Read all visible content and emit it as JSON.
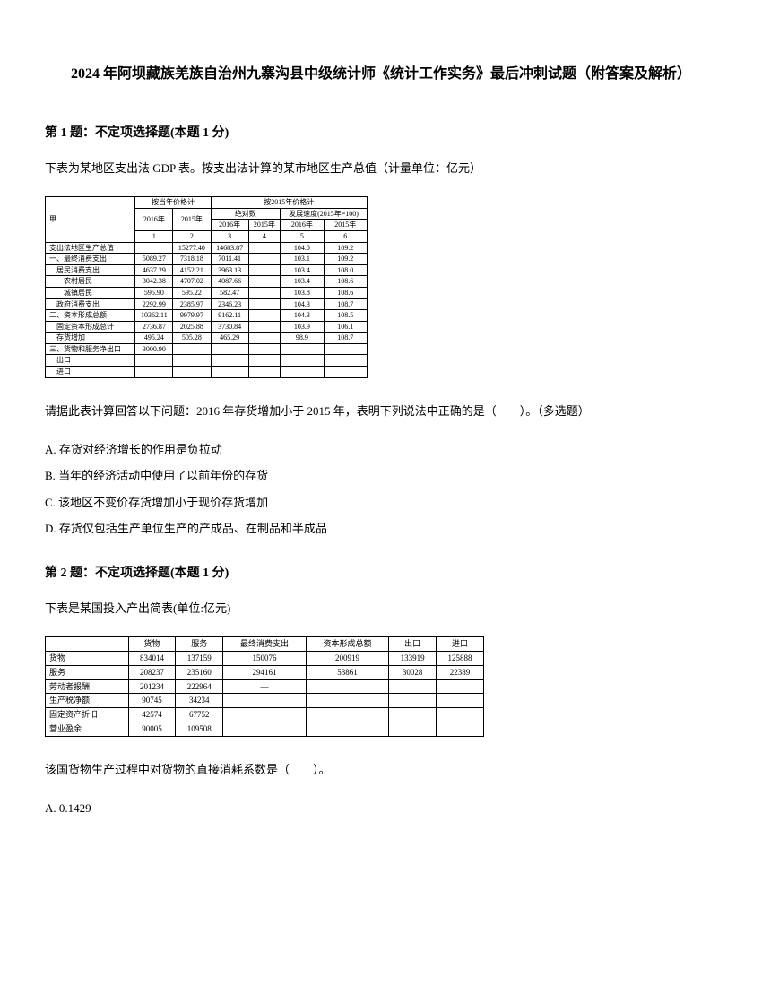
{
  "title": "2024 年阿坝藏族羌族自治州九寨沟县中级统计师《统计工作实务》最后冲刺试题（附答案及解析）",
  "q1": {
    "header": "第 1 题：不定项选择题(本题 1 分)",
    "text": "下表为某地区支出法 GDP 表。按支出法计算的某市地区生产总值（计量单位：亿元）",
    "table": {
      "header_r1_c1": "",
      "header_r1_c2": "按当年价格计",
      "header_r1_c3": "按2015年价格计",
      "header_r2_c1": "2016年",
      "header_r2_c2": "2015年",
      "header_inner1": "绝对数",
      "header_inner2": "发展速度(2015年=100)",
      "header_r3_c1": "2016年",
      "header_r3_c2": "2015年",
      "header_r3_c3": "2016年",
      "header_r3_c4": "2015年",
      "header_r4_c0": "甲",
      "header_r4_c1": "1",
      "header_r4_c2": "2",
      "header_r4_c3": "3",
      "header_r4_c4": "4",
      "header_r4_c5": "5",
      "header_r4_c6": "6",
      "rows": [
        {
          "label": "支出法地区生产总值",
          "c1": "",
          "c2": "15277.40",
          "c3": "14683.87",
          "c4": "",
          "c5": "104.0",
          "c6": "109.2"
        },
        {
          "label": "一、最终消费支出",
          "c1": "5089.27",
          "c2": "7318.18",
          "c3": "7011.41",
          "c4": "",
          "c5": "103.1",
          "c6": "109.2"
        },
        {
          "label": "　居民消费支出",
          "c1": "4637.29",
          "c2": "4152.21",
          "c3": "3963.13",
          "c4": "",
          "c5": "103.4",
          "c6": "108.0"
        },
        {
          "label": "　　农村居民",
          "c1": "3042.38",
          "c2": "4707.02",
          "c3": "4087.66",
          "c4": "",
          "c5": "103.4",
          "c6": "108.6"
        },
        {
          "label": "　　城镇居民",
          "c1": "595.90",
          "c2": "595.22",
          "c3": "582.47",
          "c4": "",
          "c5": "103.8",
          "c6": "108.6"
        },
        {
          "label": "　政府消费支出",
          "c1": "2292.99",
          "c2": "2385.97",
          "c3": "2346.23",
          "c4": "",
          "c5": "104.3",
          "c6": "108.7"
        },
        {
          "label": "二、资本形成总额",
          "c1": "10362.11",
          "c2": "9979.97",
          "c3": "9162.11",
          "c4": "",
          "c5": "104.3",
          "c6": "108.5"
        },
        {
          "label": "　固定资本形成总计",
          "c1": "2736.87",
          "c2": "2025.88",
          "c3": "3730.84",
          "c4": "",
          "c5": "103.9",
          "c6": "106.1"
        },
        {
          "label": "　存货增加",
          "c1": "495.24",
          "c2": "505.28",
          "c3": "465.29",
          "c4": "",
          "c5": "98.9",
          "c6": "108.7"
        },
        {
          "label": "三、货物和服务净出口",
          "c1": "3000.90",
          "c2": "",
          "c3": "",
          "c4": "",
          "c5": "",
          "c6": ""
        },
        {
          "label": "　出口",
          "c1": "",
          "c2": "",
          "c3": "",
          "c4": "",
          "c5": "",
          "c6": ""
        },
        {
          "label": "　进口",
          "c1": "",
          "c2": "",
          "c3": "",
          "c4": "",
          "c5": "",
          "c6": ""
        }
      ]
    },
    "followup": "请据此表计算回答以下问题：2016 年存货增加小于 2015 年，表明下列说法中正确的是（　　）。（多选题）",
    "options": {
      "a": "A. 存货对经济增长的作用是负拉动",
      "b": "B. 当年的经济活动中使用了以前年份的存货",
      "c": "C. 该地区不变价存货增加小于现价存货增加",
      "d": "D. 存货仅包括生产单位生产的产成品、在制品和半成品"
    }
  },
  "q2": {
    "header": "第 2 题：不定项选择题(本题 1 分)",
    "text": "下表是某国投入产出简表(单位:亿元)",
    "table": {
      "cols": [
        "",
        "货物",
        "服务",
        "最终消费支出",
        "资本形成总额",
        "出口",
        "进口"
      ],
      "rows": [
        [
          "货物",
          "834014",
          "137159",
          "150076",
          "200919",
          "133919",
          "125888"
        ],
        [
          "服务",
          "208237",
          "235160",
          "294161",
          "53861",
          "30028",
          "22389"
        ],
        [
          "劳动者报酬",
          "201234",
          "222964",
          "—",
          "",
          "",
          ""
        ],
        [
          "生产税净额",
          "90745",
          "34234",
          "",
          "",
          "",
          ""
        ],
        [
          "固定资产折旧",
          "42574",
          "67752",
          "",
          "",
          "",
          ""
        ],
        [
          "营业盈余",
          "90005",
          "109508",
          "",
          "",
          "",
          ""
        ]
      ]
    },
    "followup": "该国货物生产过程中对货物的直接消耗系数是（　　）。",
    "options": {
      "a": "A. 0.1429"
    }
  }
}
